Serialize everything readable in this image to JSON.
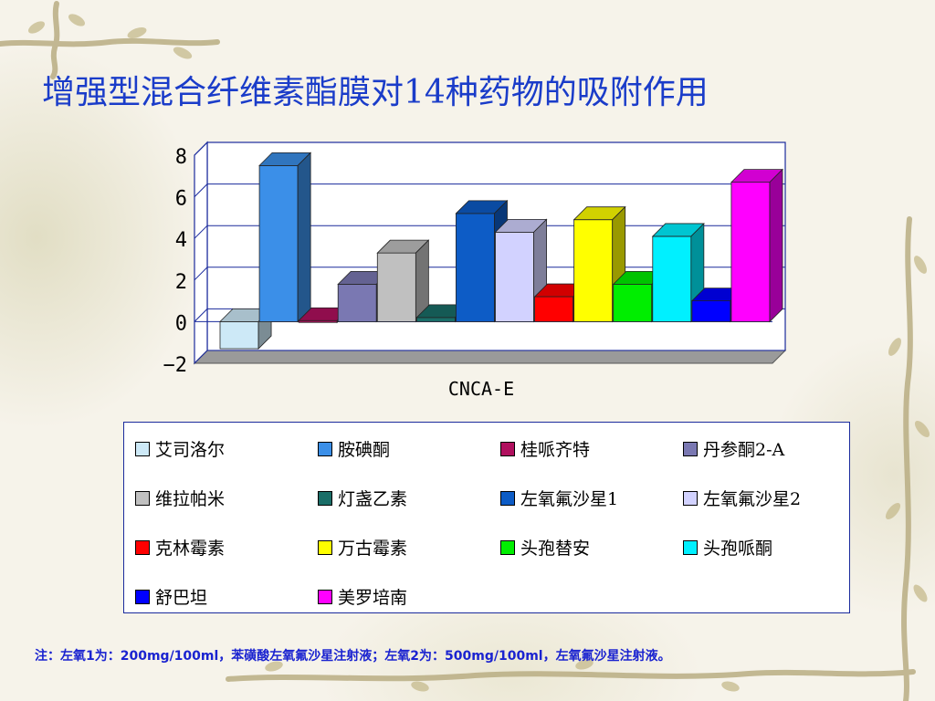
{
  "slide": {
    "title": "增强型混合纤维素酯膜对14种药物的吸附作用",
    "note": "注：左氧1为：200mg/100ml，苯磺酸左氧氟沙星注射液；左氧2为：500mg/100ml，左氧氟沙星注射液。"
  },
  "colors": {
    "title": "#1a3cc9",
    "wall_border": "#1a2a9c",
    "floor": "#9a9a9a",
    "vine": "#b9ad83"
  },
  "chart_data": {
    "type": "bar",
    "style": "3d-clustered-column",
    "categories": [
      "CNCA-E"
    ],
    "series": [
      {
        "name": "艾司洛尔",
        "values": [
          -1.3
        ],
        "color": "#cde9f7"
      },
      {
        "name": "胺碘酮",
        "values": [
          7.5
        ],
        "color": "#3b8fe8"
      },
      {
        "name": "桂哌齐特",
        "values": [
          0.05
        ],
        "color": "#b0105e"
      },
      {
        "name": "丹参酮2-A",
        "values": [
          1.8
        ],
        "color": "#7a78b2"
      },
      {
        "name": "维拉帕米",
        "values": [
          3.3
        ],
        "color": "#c0c0c0"
      },
      {
        "name": "灯盏乙素",
        "values": [
          0.2
        ],
        "color": "#1a6e68"
      },
      {
        "name": "左氧氟沙星1",
        "values": [
          5.2
        ],
        "color": "#0d5cc6"
      },
      {
        "name": "左氧氟沙星2",
        "values": [
          4.3
        ],
        "color": "#d2d2ff"
      },
      {
        "name": "克林霉素",
        "values": [
          1.2
        ],
        "color": "#ff0000"
      },
      {
        "name": "万古霉素",
        "values": [
          4.9
        ],
        "color": "#ffff00"
      },
      {
        "name": "头孢替安",
        "values": [
          1.8
        ],
        "color": "#00ee00"
      },
      {
        "name": "头孢哌酮",
        "values": [
          4.1
        ],
        "color": "#00f0ff"
      },
      {
        "name": "舒巴坦",
        "values": [
          1.0
        ],
        "color": "#0000ff"
      },
      {
        "name": "美罗培南",
        "values": [
          6.7
        ],
        "color": "#ff00ff"
      }
    ],
    "ylim": [
      -2,
      8
    ],
    "yticks": [
      8,
      6,
      4,
      2,
      0,
      -2
    ],
    "xlabel": "CNCA-E",
    "grid": true,
    "legend_position": "bottom"
  }
}
